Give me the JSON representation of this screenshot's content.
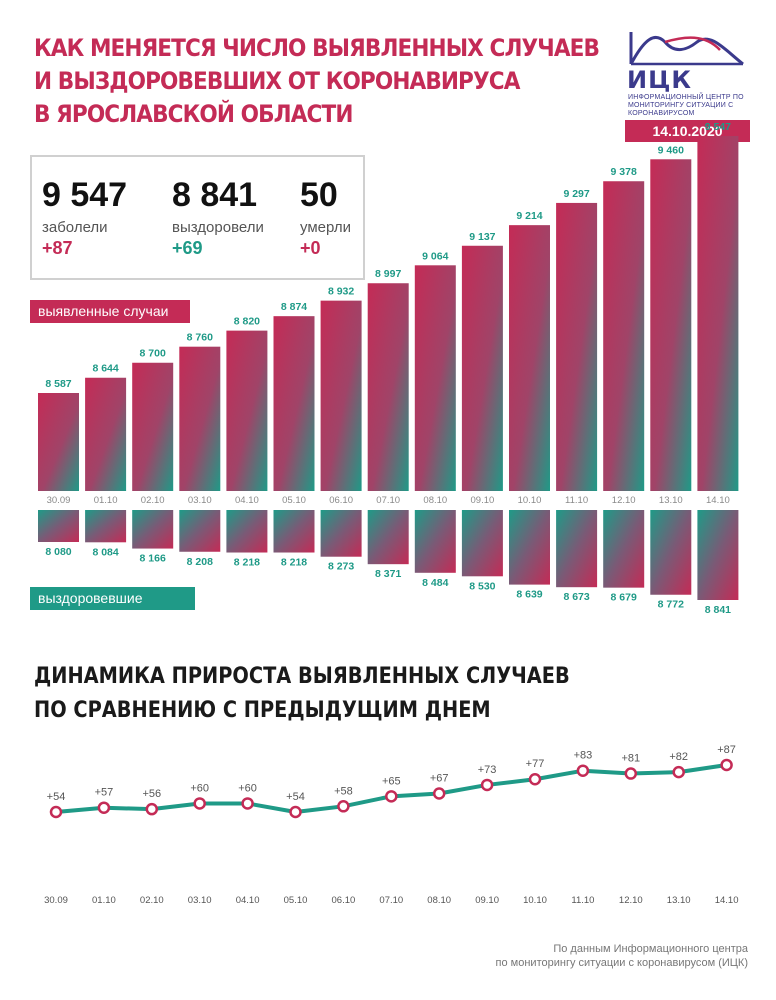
{
  "header": {
    "title_lines": [
      "Как меняется число выявленных случаев",
      "и выздоровевших от коронавируса",
      "в Ярославской области"
    ],
    "logo_name": "ИЦК",
    "logo_subtitle": "Информационный центр по мониторингу ситуации с коронавирусом",
    "date": "14.10.2020"
  },
  "stats": {
    "cases": {
      "value": "9 547",
      "label": "заболели",
      "delta": "+87"
    },
    "recovered": {
      "value": "8 841",
      "label": "выздоровели",
      "delta": "+69"
    },
    "deaths": {
      "value": "50",
      "label": "умерли",
      "delta": "+0"
    }
  },
  "tags": {
    "cases": "выявленные случаи",
    "recovered": "выздоровевшие"
  },
  "second_title_lines": [
    "Динамика прироста выявленных случаев",
    "по сравнению с предыдущим днем"
  ],
  "source_lines": [
    "По данным Информационного центра",
    "по мониторингу ситуации с коронавирусом (ИЦК)"
  ],
  "colors": {
    "crimson": "#c42b56",
    "teal": "#1f9a87"
  },
  "chart_data": [
    {
      "type": "bar",
      "categories": [
        "30.09",
        "01.10",
        "02.10",
        "03.10",
        "04.10",
        "05.10",
        "06.10",
        "07.10",
        "08.10",
        "09.10",
        "10.10",
        "11.10",
        "12.10",
        "13.10",
        "14.10"
      ],
      "series": [
        {
          "name": "выявленные случаи",
          "values": [
            8587,
            8644,
            8700,
            8760,
            8820,
            8874,
            8932,
            8997,
            9064,
            9137,
            9214,
            9297,
            9378,
            9460,
            9547
          ],
          "labels": [
            "8 587",
            "8 644",
            "8 700",
            "8 760",
            "8 820",
            "8 874",
            "8 932",
            "8 997",
            "9 064",
            "9 137",
            "9 214",
            "9 297",
            "9 378",
            "9 460",
            "9 547"
          ]
        },
        {
          "name": "выздоровевшие",
          "values": [
            8080,
            8084,
            8166,
            8208,
            8218,
            8218,
            8273,
            8371,
            8484,
            8530,
            8639,
            8673,
            8679,
            8772,
            8841
          ],
          "labels": [
            "8 080",
            "8 084",
            "8 166",
            "8 208",
            "8 218",
            "8 218",
            "8 273",
            "8 371",
            "8 484",
            "8 530",
            "8 639",
            "8 673",
            "8 679",
            "8 772",
            "8 841"
          ]
        }
      ]
    },
    {
      "type": "line",
      "categories": [
        "30.09",
        "01.10",
        "02.10",
        "03.10",
        "04.10",
        "05.10",
        "06.10",
        "07.10",
        "08.10",
        "09.10",
        "10.10",
        "11.10",
        "12.10",
        "13.10",
        "14.10"
      ],
      "series": [
        {
          "values": [
            54,
            57,
            56,
            60,
            60,
            54,
            58,
            65,
            67,
            73,
            77,
            83,
            81,
            82,
            87
          ],
          "labels": [
            "+54",
            "+57",
            "+56",
            "+60",
            "+60",
            "+54",
            "+58",
            "+65",
            "+67",
            "+73",
            "+77",
            "+83",
            "+81",
            "+82",
            "+87"
          ]
        }
      ]
    }
  ]
}
